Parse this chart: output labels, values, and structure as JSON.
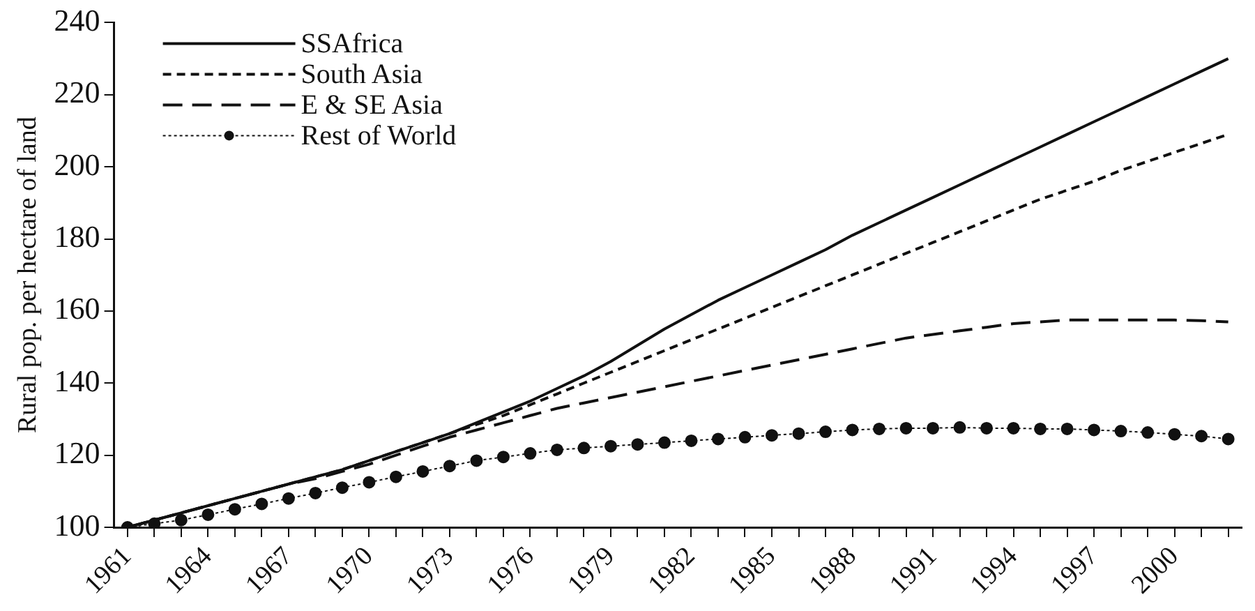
{
  "chart_data": {
    "type": "line",
    "ylabel": "Rural pop. per hectare of land",
    "categories": [
      "1961",
      null,
      null,
      "1964",
      null,
      null,
      "1967",
      null,
      null,
      "1970",
      null,
      null,
      "1973",
      null,
      null,
      "1976",
      null,
      null,
      "1979",
      null,
      null,
      "1982",
      null,
      null,
      "1985",
      null,
      null,
      "1988",
      null,
      null,
      "1991",
      null,
      null,
      "1994",
      null,
      null,
      "1997",
      null,
      null,
      "2000",
      null,
      null
    ],
    "ylim": [
      100,
      240
    ],
    "yticks": [
      100,
      120,
      140,
      160,
      180,
      200,
      220,
      240
    ],
    "grid": false,
    "legend": "top left",
    "series": [
      {
        "name": "SSAfrica",
        "color": "#111111",
        "line_style": "solid",
        "marker": "none",
        "values": [
          100,
          102,
          104,
          106,
          108,
          110,
          112,
          114,
          116,
          118.5,
          121,
          123.5,
          126,
          129,
          132,
          135,
          138.5,
          142,
          146,
          150.5,
          155,
          159,
          163,
          166.5,
          170,
          173.5,
          177,
          181,
          184.5,
          188,
          191.5,
          195,
          198.5,
          202,
          205.5,
          209,
          212.5,
          216,
          219.5,
          223,
          226.5,
          230
        ]
      },
      {
        "name": "South Asia",
        "color": "#111111",
        "line_style": "dashed",
        "marker": "none",
        "values": [
          100,
          102,
          104,
          106,
          108,
          110,
          112,
          114,
          116,
          118.5,
          121,
          123.5,
          126,
          128.5,
          131,
          134,
          137,
          140,
          143,
          146,
          149,
          152,
          155,
          158,
          161,
          164,
          167,
          170,
          173,
          176,
          179,
          182,
          185,
          188,
          191,
          193.5,
          196,
          199,
          201.5,
          204,
          206.5,
          209
        ]
      },
      {
        "name": "E & SE Asia",
        "color": "#111111",
        "line_style": "dashed",
        "marker": "none",
        "values": [
          100,
          102,
          104,
          106,
          108,
          110,
          112,
          113.5,
          115.5,
          117.5,
          120,
          122.5,
          125,
          127,
          129,
          131,
          133,
          134.5,
          136,
          137.5,
          139,
          140.5,
          142,
          143.5,
          145,
          146.5,
          148,
          149.5,
          151,
          152.5,
          153.5,
          154.5,
          155.5,
          156.5,
          157,
          157.5,
          157.5,
          157.5,
          157.5,
          157.5,
          157.3,
          157
        ]
      },
      {
        "name": "Rest of World",
        "color": "#111111",
        "line_style": "dotted",
        "marker": "circle",
        "values": [
          100,
          101,
          102,
          103.5,
          105,
          106.5,
          108,
          109.5,
          111,
          112.5,
          114,
          115.5,
          117,
          118.5,
          119.5,
          120.5,
          121.5,
          122,
          122.5,
          123,
          123.5,
          124,
          124.5,
          125,
          125.5,
          126,
          126.5,
          127,
          127.3,
          127.5,
          127.5,
          127.7,
          127.5,
          127.5,
          127.3,
          127.3,
          127,
          126.7,
          126.3,
          125.8,
          125.3,
          124.5
        ]
      }
    ]
  }
}
